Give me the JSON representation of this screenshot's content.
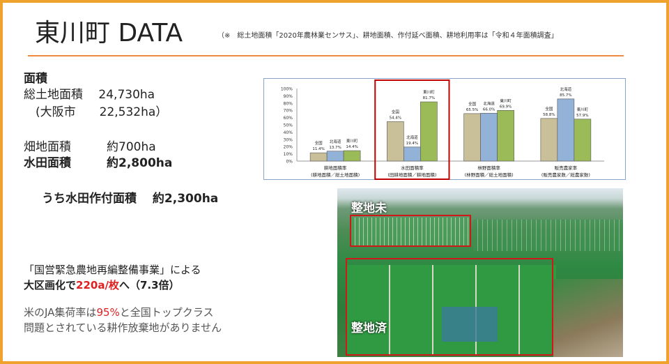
{
  "title": "東川町 DATA",
  "note": "（※　総土地面積「2020年農林業センサス」、耕地面積、作付延べ面積、耕地利用率は「令和４年面積調査」",
  "area": {
    "heading": "面積",
    "total": "総土地面積　 24,730ha",
    "osaka": "　(大阪市　　22,532ha）",
    "field": "畑地面積　　　約700ha",
    "paddy": "水田面積　　　約2,800ha",
    "planted": "うち水田作付面積　 約2,300ha"
  },
  "project": {
    "line1": "「国営緊急農地再編整備事業」による",
    "line2_a": "大区画化で",
    "line2_b": "220a/枚",
    "line2_c": "へ（7.3倍）"
  },
  "ja": {
    "line1_a": "米のJA集荷率は",
    "line1_b": "95%",
    "line1_c": "と全国トップクラス",
    "line2": "問題とされている耕作放棄地がありません"
  },
  "photo": {
    "label_top": "整地未",
    "label_bottom": "整地済"
  },
  "chart_data": {
    "type": "bar",
    "ylim": [
      0,
      100
    ],
    "yticks": [
      "0%",
      "10%",
      "20%",
      "30%",
      "40%",
      "50%",
      "60%",
      "70%",
      "80%",
      "90%",
      "100%"
    ],
    "categories": [
      [
        "耕地面積率",
        "(耕地面積／総土地面積)"
      ],
      [
        "水田面積率",
        "(田耕地面積／耕地面積)"
      ],
      [
        "林野面積率",
        "(林野面積／総土地面積)"
      ],
      [
        "販売農家率",
        "(販売農家数／総農家数)"
      ]
    ],
    "series": [
      {
        "name": "全国",
        "color": "#c9bf98",
        "values": [
          11.4,
          54.4,
          65.5,
          58.8
        ]
      },
      {
        "name": "北海道",
        "color": "#93b2d8",
        "values": [
          13.7,
          19.4,
          66.0,
          85.7
        ]
      },
      {
        "name": "東川町",
        "color": "#9bbb59",
        "values": [
          14.4,
          81.7,
          69.9,
          57.9
        ]
      }
    ],
    "highlight_category": 1,
    "highlight_color": "#c00000"
  }
}
